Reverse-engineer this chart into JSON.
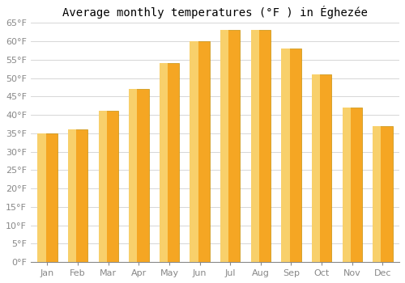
{
  "title": "Average monthly temperatures (°F ) in Éghezée",
  "months": [
    "Jan",
    "Feb",
    "Mar",
    "Apr",
    "May",
    "Jun",
    "Jul",
    "Aug",
    "Sep",
    "Oct",
    "Nov",
    "Dec"
  ],
  "values": [
    35,
    36,
    41,
    47,
    54,
    60,
    63,
    63,
    58,
    51,
    42,
    37
  ],
  "bar_color_main": "#F5A623",
  "bar_color_left": "#F8D06B",
  "bar_edge_color": "#C8900A",
  "ylim": [
    0,
    65
  ],
  "yticks": [
    0,
    5,
    10,
    15,
    20,
    25,
    30,
    35,
    40,
    45,
    50,
    55,
    60,
    65
  ],
  "ytick_labels": [
    "0°F",
    "5°F",
    "10°F",
    "15°F",
    "20°F",
    "25°F",
    "30°F",
    "35°F",
    "40°F",
    "45°F",
    "50°F",
    "55°F",
    "60°F",
    "65°F"
  ],
  "grid_color": "#d0d0d0",
  "background_color": "#ffffff",
  "title_fontsize": 10,
  "tick_fontsize": 8,
  "bar_width": 0.65
}
